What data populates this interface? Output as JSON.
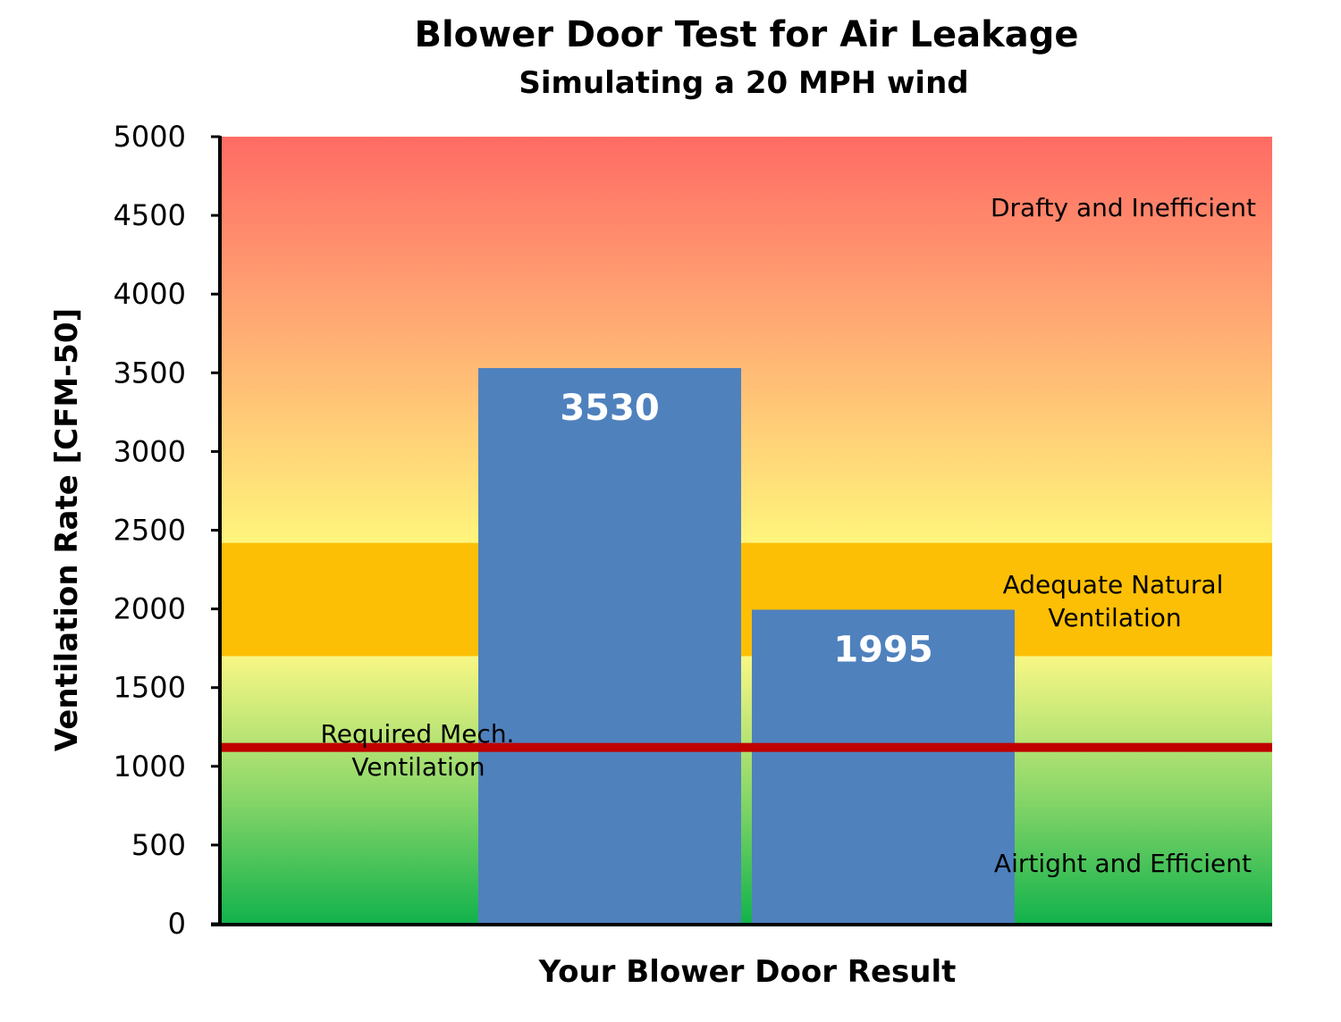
{
  "chart_data": {
    "type": "bar",
    "title": "Blower Door Test for Air Leakage",
    "subtitle": "Simulating a 20 MPH wind",
    "xlabel": "Your Blower Door Result",
    "ylabel": "Ventilation Rate [CFM-50]",
    "ylim": [
      0,
      5000
    ],
    "yticks": [
      0,
      500,
      1000,
      1500,
      2000,
      2500,
      3000,
      3500,
      4000,
      4500,
      5000
    ],
    "values": [
      3530,
      1995
    ],
    "value_labels": [
      "3530",
      "1995"
    ],
    "bar_color": "#4f81bd",
    "zones": [
      {
        "label": "Airtight and Efficient",
        "from": 0,
        "to": 1700
      },
      {
        "label": "Adequate Natural Ventilation",
        "label_lines": [
          "Adequate Natural",
          "Ventilation"
        ],
        "from": 1700,
        "to": 2420,
        "color": "#fcbf05"
      },
      {
        "label": "Drafty and Inefficient",
        "from": 2420,
        "to": 5000
      }
    ],
    "reference_line": {
      "value": 1120,
      "label_lines": [
        "Required Mech.",
        "Ventilation"
      ],
      "color": "#c00000"
    },
    "grid": false
  }
}
